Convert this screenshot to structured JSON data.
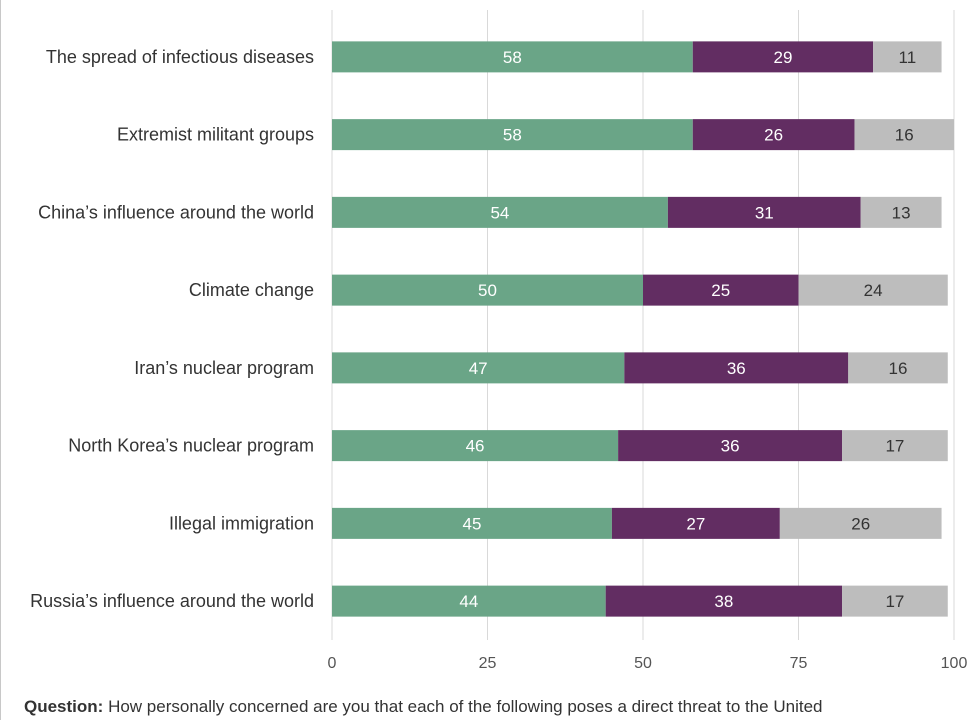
{
  "chart_data": {
    "type": "bar",
    "orientation": "horizontal",
    "stacked": true,
    "categories": [
      "The spread of infectious diseases",
      "Extremist militant groups",
      "China’s influence around the world",
      "Climate change",
      "Iran’s nuclear program",
      "North Korea’s nuclear program",
      "Illegal immigration",
      "Russia’s influence around the world"
    ],
    "series": [
      {
        "values": [
          58,
          58,
          54,
          50,
          47,
          46,
          45,
          44
        ],
        "color": "#6aa587",
        "label_color": "#ffffff"
      },
      {
        "values": [
          29,
          26,
          31,
          25,
          36,
          36,
          27,
          38
        ],
        "color": "#622d62",
        "label_color": "#ffffff"
      },
      {
        "values": [
          11,
          16,
          13,
          24,
          16,
          17,
          26,
          17
        ],
        "color": "#bdbdbd",
        "label_color": "#333333"
      }
    ],
    "xlim": [
      0,
      100
    ],
    "xticks": [
      0,
      25,
      50,
      75,
      100
    ],
    "grid": true
  },
  "note": {
    "label": "Question:",
    "text": "How personally concerned are you that each of the following poses a direct threat to the United"
  }
}
